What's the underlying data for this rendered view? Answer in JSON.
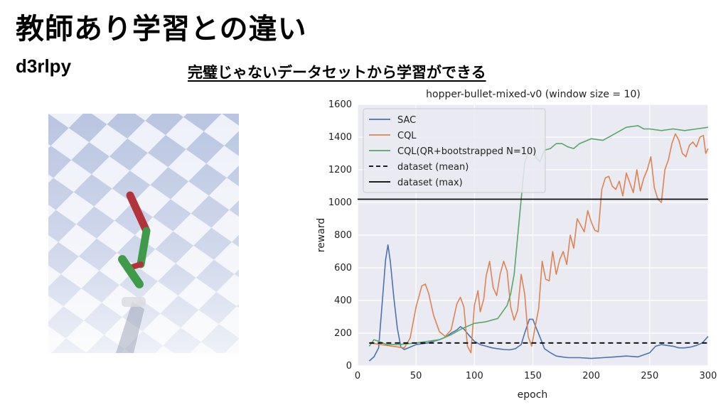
{
  "slide": {
    "title": "教師あり学習との違い",
    "subtitle": "d3rlpy",
    "caption": "完璧じゃないデータセットから学習ができる"
  },
  "simulation": {
    "icon": "hopper-robot-simulation"
  },
  "chart_data": {
    "type": "line",
    "title": "hopper-bullet-mixed-v0 (window size = 10)",
    "xlabel": "epoch",
    "ylabel": "reward",
    "xlim": [
      0,
      300
    ],
    "ylim": [
      0,
      1600
    ],
    "xticks": [
      0,
      50,
      100,
      150,
      200,
      250,
      300
    ],
    "yticks": [
      0,
      200,
      400,
      600,
      800,
      1000,
      1200,
      1400,
      1600
    ],
    "grid": true,
    "legend_position": "top-left",
    "series": [
      {
        "name": "SAC",
        "color": "#4c72b0",
        "style": "solid",
        "x": [
          10,
          14,
          18,
          21,
          24,
          26,
          28,
          31,
          34,
          37,
          40,
          45,
          50,
          55,
          60,
          65,
          70,
          75,
          80,
          85,
          88,
          91,
          95,
          100,
          105,
          110,
          115,
          120,
          125,
          130,
          135,
          140,
          143,
          147,
          150,
          153,
          157,
          160,
          165,
          170,
          175,
          180,
          190,
          200,
          210,
          220,
          230,
          240,
          250,
          255,
          260,
          265,
          270,
          275,
          280,
          285,
          290,
          295,
          300
        ],
        "y": [
          30,
          55,
          110,
          380,
          650,
          740,
          640,
          420,
          230,
          115,
          100,
          115,
          130,
          135,
          140,
          150,
          160,
          175,
          200,
          220,
          240,
          225,
          190,
          150,
          130,
          120,
          110,
          105,
          100,
          98,
          105,
          130,
          200,
          285,
          285,
          230,
          160,
          105,
          80,
          60,
          55,
          50,
          50,
          45,
          50,
          55,
          60,
          55,
          80,
          120,
          130,
          125,
          120,
          110,
          110,
          115,
          125,
          140,
          180
        ]
      },
      {
        "name": "CQL",
        "color": "#dd8452",
        "style": "solid",
        "x": [
          10,
          20,
          30,
          40,
          45,
          50,
          55,
          58,
          61,
          65,
          70,
          75,
          80,
          85,
          88,
          91,
          94,
          97,
          100,
          103,
          105,
          108,
          110,
          113,
          116,
          119,
          122,
          125,
          128,
          131,
          134,
          137,
          140,
          143,
          146,
          149,
          152,
          155,
          158,
          161,
          164,
          167,
          170,
          173,
          176,
          179,
          182,
          185,
          188,
          191,
          194,
          197,
          200,
          203,
          206,
          209,
          212,
          215,
          218,
          221,
          224,
          227,
          230,
          233,
          236,
          239,
          242,
          245,
          248,
          251,
          254,
          257,
          260,
          263,
          266,
          269,
          272,
          275,
          278,
          281,
          284,
          287,
          290,
          293,
          296,
          298,
          300
        ],
        "y": [
          140,
          130,
          120,
          110,
          170,
          360,
          490,
          500,
          440,
          310,
          210,
          180,
          220,
          380,
          420,
          360,
          120,
          80,
          370,
          460,
          330,
          410,
          550,
          640,
          480,
          430,
          560,
          640,
          580,
          360,
          280,
          340,
          560,
          440,
          180,
          120,
          240,
          350,
          640,
          530,
          520,
          700,
          560,
          650,
          700,
          620,
          800,
          720,
          900,
          860,
          820,
          950,
          880,
          830,
          820,
          1080,
          1150,
          1160,
          1100,
          1080,
          1130,
          1040,
          1180,
          1120,
          1060,
          1200,
          1070,
          1150,
          1200,
          1280,
          1090,
          1020,
          1000,
          1200,
          1260,
          1360,
          1420,
          1380,
          1300,
          1280,
          1350,
          1370,
          1340,
          1400,
          1410,
          1300,
          1330
        ]
      },
      {
        "name": "CQL(QR+bootstrapped N=10)",
        "color": "#55a868",
        "style": "solid",
        "x": [
          10,
          14,
          18,
          25,
          35,
          50,
          60,
          70,
          80,
          90,
          100,
          110,
          120,
          125,
          128,
          131,
          134,
          137,
          140,
          143,
          146,
          150,
          153,
          156,
          160,
          165,
          170,
          175,
          180,
          185,
          190,
          200,
          210,
          220,
          230,
          240,
          245,
          250,
          260,
          270,
          280,
          290,
          300
        ],
        "y": [
          120,
          160,
          150,
          130,
          130,
          140,
          150,
          160,
          190,
          230,
          260,
          270,
          290,
          340,
          370,
          440,
          560,
          790,
          1020,
          1240,
          1310,
          1330,
          1270,
          1250,
          1320,
          1330,
          1360,
          1360,
          1340,
          1330,
          1360,
          1390,
          1380,
          1420,
          1460,
          1470,
          1450,
          1450,
          1440,
          1450,
          1440,
          1450,
          1460
        ]
      },
      {
        "name": "dataset (mean)",
        "color": "#000000",
        "style": "dashed",
        "x": [
          10,
          300
        ],
        "y": [
          140,
          140
        ]
      },
      {
        "name": "dataset (max)",
        "color": "#000000",
        "style": "solid",
        "x": [
          0,
          300
        ],
        "y": [
          1020,
          1020
        ]
      }
    ]
  }
}
